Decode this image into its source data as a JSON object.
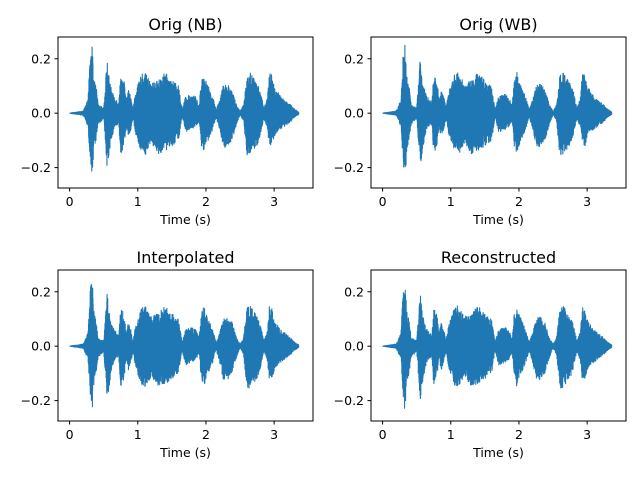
{
  "chart_data": [
    {
      "type": "line",
      "title": "Orig (NB)",
      "xlabel": "Time (s)",
      "ylabel": "",
      "xlim": [
        -0.17,
        3.57
      ],
      "ylim": [
        -0.275,
        0.28
      ],
      "xticks": [
        0,
        1,
        2,
        3
      ],
      "yticks": [
        -0.2,
        0.0,
        0.2
      ],
      "series": [
        {
          "color": "#1f77b4",
          "envelope_t": [
            0.0,
            0.2,
            0.27,
            0.3,
            0.33,
            0.36,
            0.39,
            0.42,
            0.5,
            0.55,
            0.58,
            0.62,
            0.66,
            0.72,
            0.75,
            0.8,
            0.83,
            0.86,
            0.9,
            0.93,
            0.97,
            1.05,
            1.1,
            1.2,
            1.3,
            1.4,
            1.5,
            1.6,
            1.65,
            1.7,
            1.8,
            1.85,
            1.9,
            1.93,
            1.97,
            2.0,
            2.05,
            2.1,
            2.15,
            2.2,
            2.25,
            2.3,
            2.38,
            2.45,
            2.5,
            2.55,
            2.6,
            2.65,
            2.75,
            2.8,
            2.85,
            2.9,
            2.93,
            2.97,
            3.0,
            3.05,
            3.1,
            3.15,
            3.2,
            3.25,
            3.3,
            3.36
          ],
          "envelope_upper": [
            0.0,
            0.008,
            0.05,
            0.21,
            0.25,
            0.12,
            0.1,
            0.03,
            0.02,
            0.2,
            0.13,
            0.08,
            0.06,
            0.04,
            0.14,
            0.12,
            0.05,
            0.09,
            0.06,
            0.02,
            0.08,
            0.14,
            0.15,
            0.11,
            0.12,
            0.15,
            0.12,
            0.1,
            0.015,
            0.06,
            0.07,
            0.06,
            0.03,
            0.12,
            0.15,
            0.12,
            0.09,
            0.06,
            0.015,
            0.05,
            0.1,
            0.11,
            0.09,
            0.03,
            0.007,
            0.03,
            0.14,
            0.15,
            0.11,
            0.08,
            0.02,
            0.055,
            0.15,
            0.14,
            0.1,
            0.08,
            0.06,
            0.05,
            0.04,
            0.03,
            0.015,
            0.005
          ],
          "envelope_lower": [
            0.0,
            -0.008,
            -0.05,
            -0.18,
            -0.24,
            -0.13,
            -0.1,
            -0.04,
            -0.02,
            -0.2,
            -0.15,
            -0.09,
            -0.05,
            -0.04,
            -0.15,
            -0.12,
            -0.05,
            -0.09,
            -0.06,
            -0.02,
            -0.08,
            -0.14,
            -0.16,
            -0.11,
            -0.15,
            -0.14,
            -0.12,
            -0.1,
            -0.015,
            -0.07,
            -0.06,
            -0.05,
            -0.03,
            -0.12,
            -0.15,
            -0.12,
            -0.09,
            -0.06,
            -0.015,
            -0.06,
            -0.12,
            -0.13,
            -0.1,
            -0.04,
            -0.007,
            -0.03,
            -0.16,
            -0.15,
            -0.12,
            -0.08,
            -0.02,
            -0.055,
            -0.13,
            -0.12,
            -0.09,
            -0.07,
            -0.06,
            -0.05,
            -0.04,
            -0.03,
            -0.015,
            -0.005
          ]
        }
      ]
    },
    {
      "type": "line",
      "title": "Orig (WB)",
      "xlabel": "Time (s)",
      "ylabel": "",
      "xlim": [
        -0.17,
        3.57
      ],
      "ylim": [
        -0.275,
        0.28
      ],
      "xticks": [
        0,
        1,
        2,
        3
      ],
      "yticks": [
        -0.2,
        0.0,
        0.2
      ],
      "series": [
        {
          "color": "#1f77b4",
          "envelope_t": [
            0.0,
            0.2,
            0.27,
            0.3,
            0.33,
            0.36,
            0.39,
            0.42,
            0.5,
            0.55,
            0.58,
            0.62,
            0.66,
            0.72,
            0.75,
            0.8,
            0.83,
            0.86,
            0.9,
            0.93,
            0.97,
            1.05,
            1.1,
            1.2,
            1.3,
            1.4,
            1.5,
            1.6,
            1.65,
            1.7,
            1.8,
            1.85,
            1.9,
            1.93,
            1.97,
            2.0,
            2.05,
            2.1,
            2.15,
            2.2,
            2.25,
            2.3,
            2.38,
            2.45,
            2.5,
            2.55,
            2.6,
            2.65,
            2.75,
            2.8,
            2.85,
            2.9,
            2.93,
            2.97,
            3.0,
            3.05,
            3.1,
            3.15,
            3.2,
            3.25,
            3.3,
            3.36
          ],
          "envelope_upper": [
            0.0,
            0.008,
            0.05,
            0.21,
            0.26,
            0.12,
            0.1,
            0.03,
            0.02,
            0.2,
            0.13,
            0.08,
            0.06,
            0.04,
            0.14,
            0.12,
            0.05,
            0.09,
            0.06,
            0.02,
            0.08,
            0.14,
            0.15,
            0.11,
            0.12,
            0.15,
            0.12,
            0.1,
            0.015,
            0.06,
            0.07,
            0.06,
            0.03,
            0.12,
            0.15,
            0.12,
            0.09,
            0.06,
            0.015,
            0.05,
            0.1,
            0.11,
            0.09,
            0.03,
            0.007,
            0.03,
            0.14,
            0.15,
            0.11,
            0.08,
            0.02,
            0.055,
            0.15,
            0.14,
            0.1,
            0.08,
            0.06,
            0.05,
            0.04,
            0.03,
            0.015,
            0.005
          ],
          "envelope_lower": [
            0.0,
            -0.008,
            -0.05,
            -0.18,
            -0.245,
            -0.13,
            -0.1,
            -0.04,
            -0.02,
            -0.2,
            -0.15,
            -0.09,
            -0.05,
            -0.04,
            -0.15,
            -0.12,
            -0.05,
            -0.09,
            -0.06,
            -0.02,
            -0.08,
            -0.14,
            -0.16,
            -0.11,
            -0.15,
            -0.14,
            -0.12,
            -0.1,
            -0.015,
            -0.07,
            -0.06,
            -0.05,
            -0.03,
            -0.12,
            -0.15,
            -0.12,
            -0.09,
            -0.06,
            -0.015,
            -0.06,
            -0.12,
            -0.13,
            -0.1,
            -0.04,
            -0.007,
            -0.03,
            -0.16,
            -0.15,
            -0.12,
            -0.08,
            -0.02,
            -0.055,
            -0.13,
            -0.12,
            -0.09,
            -0.07,
            -0.06,
            -0.05,
            -0.04,
            -0.03,
            -0.015,
            -0.005
          ]
        }
      ]
    },
    {
      "type": "line",
      "title": "Interpolated",
      "xlabel": "Time (s)",
      "ylabel": "",
      "xlim": [
        -0.17,
        3.57
      ],
      "ylim": [
        -0.275,
        0.28
      ],
      "xticks": [
        0,
        1,
        2,
        3
      ],
      "yticks": [
        -0.2,
        0.0,
        0.2
      ],
      "series": [
        {
          "color": "#1f77b4",
          "envelope_t": [
            0.0,
            0.2,
            0.27,
            0.3,
            0.33,
            0.36,
            0.39,
            0.42,
            0.5,
            0.55,
            0.58,
            0.62,
            0.66,
            0.72,
            0.75,
            0.8,
            0.83,
            0.86,
            0.9,
            0.93,
            0.97,
            1.05,
            1.1,
            1.2,
            1.3,
            1.4,
            1.5,
            1.6,
            1.65,
            1.7,
            1.8,
            1.85,
            1.9,
            1.93,
            1.97,
            2.0,
            2.05,
            2.1,
            2.15,
            2.2,
            2.25,
            2.3,
            2.38,
            2.45,
            2.5,
            2.55,
            2.6,
            2.65,
            2.75,
            2.8,
            2.85,
            2.9,
            2.93,
            2.97,
            3.0,
            3.05,
            3.1,
            3.15,
            3.2,
            3.25,
            3.3,
            3.36
          ],
          "envelope_upper": [
            0.0,
            0.008,
            0.05,
            0.21,
            0.26,
            0.12,
            0.1,
            0.03,
            0.02,
            0.2,
            0.13,
            0.08,
            0.06,
            0.04,
            0.14,
            0.12,
            0.05,
            0.09,
            0.06,
            0.02,
            0.08,
            0.14,
            0.15,
            0.11,
            0.12,
            0.15,
            0.12,
            0.1,
            0.015,
            0.06,
            0.07,
            0.06,
            0.03,
            0.12,
            0.15,
            0.12,
            0.09,
            0.06,
            0.015,
            0.05,
            0.1,
            0.11,
            0.09,
            0.03,
            0.007,
            0.03,
            0.14,
            0.15,
            0.11,
            0.08,
            0.02,
            0.055,
            0.15,
            0.14,
            0.1,
            0.08,
            0.06,
            0.05,
            0.04,
            0.03,
            0.015,
            0.005
          ],
          "envelope_lower": [
            0.0,
            -0.008,
            -0.05,
            -0.18,
            -0.245,
            -0.13,
            -0.1,
            -0.04,
            -0.02,
            -0.2,
            -0.15,
            -0.09,
            -0.05,
            -0.04,
            -0.15,
            -0.12,
            -0.05,
            -0.09,
            -0.06,
            -0.02,
            -0.08,
            -0.14,
            -0.16,
            -0.11,
            -0.15,
            -0.14,
            -0.12,
            -0.1,
            -0.015,
            -0.07,
            -0.06,
            -0.05,
            -0.03,
            -0.12,
            -0.15,
            -0.12,
            -0.09,
            -0.06,
            -0.015,
            -0.06,
            -0.12,
            -0.13,
            -0.1,
            -0.04,
            -0.007,
            -0.03,
            -0.16,
            -0.15,
            -0.12,
            -0.08,
            -0.02,
            -0.055,
            -0.13,
            -0.12,
            -0.09,
            -0.07,
            -0.06,
            -0.05,
            -0.04,
            -0.03,
            -0.015,
            -0.005
          ]
        }
      ]
    },
    {
      "type": "line",
      "title": "Reconstructed",
      "xlabel": "Time (s)",
      "ylabel": "",
      "xlim": [
        -0.17,
        3.57
      ],
      "ylim": [
        -0.275,
        0.28
      ],
      "xticks": [
        0,
        1,
        2,
        3
      ],
      "yticks": [
        -0.2,
        0.0,
        0.2
      ],
      "series": [
        {
          "color": "#1f77b4",
          "envelope_t": [
            0.0,
            0.2,
            0.27,
            0.3,
            0.33,
            0.36,
            0.39,
            0.42,
            0.5,
            0.55,
            0.58,
            0.62,
            0.66,
            0.72,
            0.75,
            0.8,
            0.83,
            0.86,
            0.9,
            0.93,
            0.97,
            1.05,
            1.1,
            1.2,
            1.3,
            1.4,
            1.5,
            1.6,
            1.65,
            1.7,
            1.8,
            1.85,
            1.9,
            1.93,
            1.97,
            2.0,
            2.05,
            2.1,
            2.15,
            2.2,
            2.25,
            2.3,
            2.38,
            2.45,
            2.5,
            2.55,
            2.6,
            2.65,
            2.75,
            2.8,
            2.85,
            2.9,
            2.93,
            2.97,
            3.0,
            3.05,
            3.1,
            3.15,
            3.2,
            3.25,
            3.3,
            3.36
          ],
          "envelope_upper": [
            0.0,
            0.008,
            0.05,
            0.21,
            0.26,
            0.12,
            0.1,
            0.03,
            0.02,
            0.2,
            0.13,
            0.08,
            0.06,
            0.04,
            0.14,
            0.12,
            0.05,
            0.09,
            0.06,
            0.02,
            0.08,
            0.14,
            0.15,
            0.11,
            0.12,
            0.15,
            0.12,
            0.1,
            0.015,
            0.06,
            0.07,
            0.06,
            0.03,
            0.12,
            0.15,
            0.12,
            0.09,
            0.06,
            0.015,
            0.05,
            0.1,
            0.11,
            0.09,
            0.03,
            0.007,
            0.03,
            0.14,
            0.15,
            0.11,
            0.08,
            0.02,
            0.055,
            0.15,
            0.14,
            0.1,
            0.08,
            0.06,
            0.05,
            0.04,
            0.03,
            0.015,
            0.005
          ],
          "envelope_lower": [
            0.0,
            -0.008,
            -0.05,
            -0.18,
            -0.25,
            -0.13,
            -0.1,
            -0.04,
            -0.02,
            -0.2,
            -0.15,
            -0.09,
            -0.05,
            -0.04,
            -0.15,
            -0.12,
            -0.05,
            -0.09,
            -0.06,
            -0.02,
            -0.08,
            -0.14,
            -0.16,
            -0.11,
            -0.15,
            -0.14,
            -0.12,
            -0.1,
            -0.015,
            -0.07,
            -0.06,
            -0.05,
            -0.03,
            -0.12,
            -0.15,
            -0.12,
            -0.09,
            -0.06,
            -0.015,
            -0.06,
            -0.12,
            -0.13,
            -0.1,
            -0.04,
            -0.007,
            -0.03,
            -0.16,
            -0.15,
            -0.12,
            -0.08,
            -0.02,
            -0.055,
            -0.13,
            -0.12,
            -0.09,
            -0.07,
            -0.06,
            -0.05,
            -0.04,
            -0.03,
            -0.015,
            -0.005
          ]
        }
      ]
    }
  ]
}
